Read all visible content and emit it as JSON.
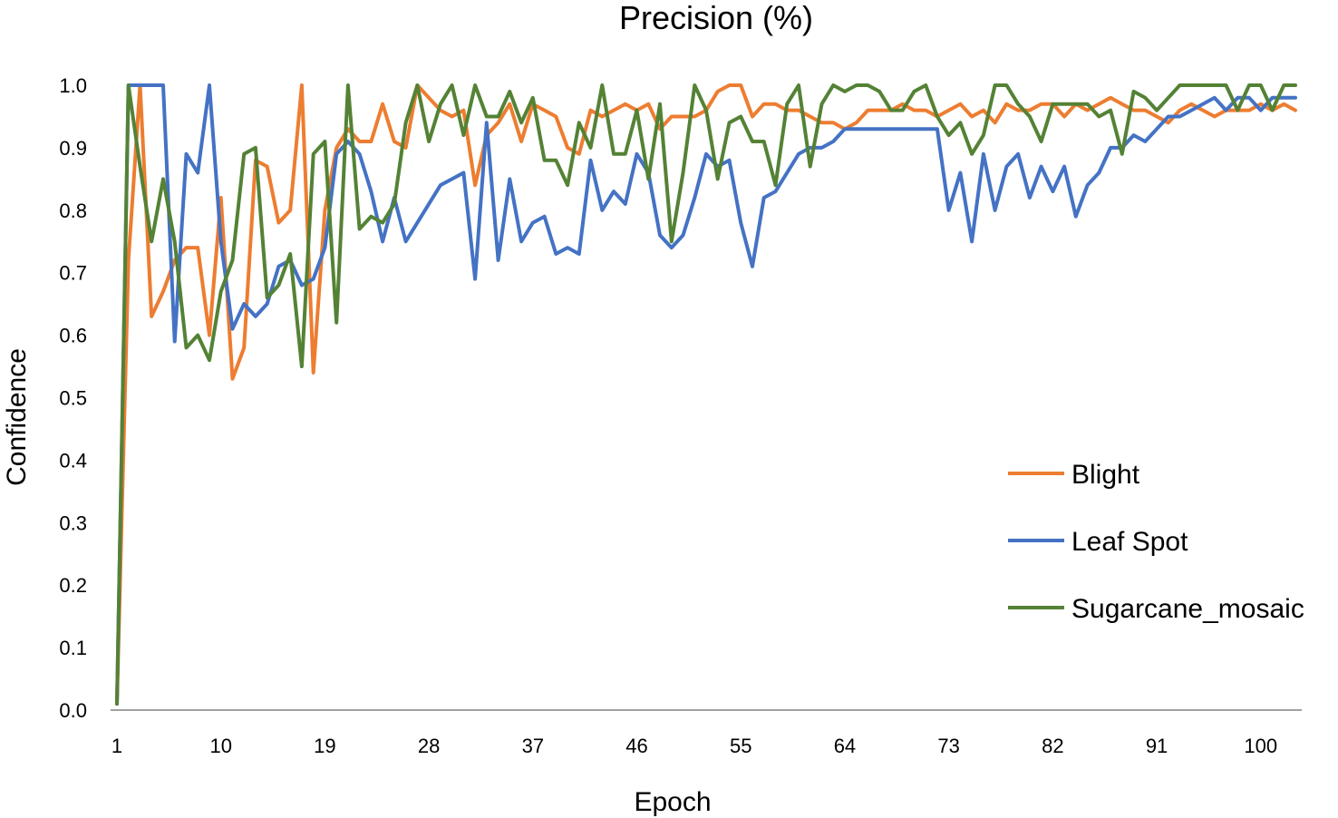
{
  "chart_data": {
    "type": "line",
    "title": "Precision (%)",
    "xlabel": "Epoch",
    "ylabel": "Confidence",
    "xlim": [
      1,
      103
    ],
    "ylim": [
      0,
      1
    ],
    "x_ticks": [
      1,
      10,
      19,
      28,
      37,
      46,
      55,
      64,
      73,
      82,
      91,
      100
    ],
    "y_ticks": [
      "0.0",
      "0.1",
      "0.2",
      "0.3",
      "0.4",
      "0.5",
      "0.6",
      "0.7",
      "0.8",
      "0.9",
      "1.0"
    ],
    "grid": false,
    "legend_position": "right",
    "series": [
      {
        "name": "Blight",
        "color": "#ED7D31",
        "values": [
          0.01,
          0.72,
          1.0,
          0.63,
          0.67,
          0.72,
          0.74,
          0.74,
          0.6,
          0.82,
          0.53,
          0.58,
          0.88,
          0.87,
          0.78,
          0.8,
          1.0,
          0.54,
          0.8,
          0.9,
          0.93,
          0.91,
          0.91,
          0.97,
          0.91,
          0.9,
          1.0,
          0.98,
          0.96,
          0.95,
          0.96,
          0.84,
          0.92,
          0.94,
          0.97,
          0.91,
          0.97,
          0.96,
          0.95,
          0.9,
          0.89,
          0.96,
          0.95,
          0.96,
          0.97,
          0.96,
          0.97,
          0.93,
          0.95,
          0.95,
          0.95,
          0.96,
          0.99,
          1.0,
          1.0,
          0.95,
          0.97,
          0.97,
          0.96,
          0.96,
          0.95,
          0.94,
          0.94,
          0.93,
          0.94,
          0.96,
          0.96,
          0.96,
          0.97,
          0.96,
          0.96,
          0.95,
          0.96,
          0.97,
          0.95,
          0.96,
          0.94,
          0.97,
          0.96,
          0.96,
          0.97,
          0.97,
          0.95,
          0.97,
          0.96,
          0.97,
          0.98,
          0.97,
          0.96,
          0.96,
          0.95,
          0.94,
          0.96,
          0.97,
          0.96,
          0.95,
          0.96,
          0.96,
          0.96,
          0.97,
          0.96,
          0.97,
          0.96
        ]
      },
      {
        "name": "Leaf Spot",
        "color": "#4472C4",
        "values": [
          0.01,
          1.0,
          1.0,
          1.0,
          1.0,
          0.59,
          0.89,
          0.86,
          1.0,
          0.75,
          0.61,
          0.65,
          0.63,
          0.65,
          0.71,
          0.72,
          0.68,
          0.69,
          0.74,
          0.89,
          0.91,
          0.89,
          0.83,
          0.75,
          0.82,
          0.75,
          0.78,
          0.81,
          0.84,
          0.85,
          0.86,
          0.69,
          0.94,
          0.72,
          0.85,
          0.75,
          0.78,
          0.79,
          0.73,
          0.74,
          0.73,
          0.88,
          0.8,
          0.83,
          0.81,
          0.89,
          0.86,
          0.76,
          0.74,
          0.76,
          0.82,
          0.89,
          0.87,
          0.88,
          0.78,
          0.71,
          0.82,
          0.83,
          0.86,
          0.89,
          0.9,
          0.9,
          0.91,
          0.93,
          0.93,
          0.93,
          0.93,
          0.93,
          0.93,
          0.93,
          0.93,
          0.93,
          0.8,
          0.86,
          0.75,
          0.89,
          0.8,
          0.87,
          0.89,
          0.82,
          0.87,
          0.83,
          0.87,
          0.79,
          0.84,
          0.86,
          0.9,
          0.9,
          0.92,
          0.91,
          0.93,
          0.95,
          0.95,
          0.96,
          0.97,
          0.98,
          0.96,
          0.98,
          0.98,
          0.96,
          0.98,
          0.98,
          0.98
        ]
      },
      {
        "name": "Sugarcane_mosaic",
        "color": "#548235",
        "values": [
          0.01,
          1.0,
          0.87,
          0.75,
          0.85,
          0.75,
          0.58,
          0.6,
          0.56,
          0.67,
          0.72,
          0.89,
          0.9,
          0.66,
          0.68,
          0.73,
          0.55,
          0.89,
          0.91,
          0.62,
          1.0,
          0.77,
          0.79,
          0.78,
          0.81,
          0.94,
          1.0,
          0.91,
          0.97,
          1.0,
          0.92,
          1.0,
          0.95,
          0.95,
          0.99,
          0.94,
          0.98,
          0.88,
          0.88,
          0.84,
          0.94,
          0.9,
          1.0,
          0.89,
          0.89,
          0.96,
          0.85,
          0.97,
          0.75,
          0.86,
          1.0,
          0.96,
          0.85,
          0.94,
          0.95,
          0.91,
          0.91,
          0.84,
          0.97,
          1.0,
          0.87,
          0.97,
          1.0,
          0.99,
          1.0,
          1.0,
          0.99,
          0.96,
          0.96,
          0.99,
          1.0,
          0.95,
          0.92,
          0.94,
          0.89,
          0.92,
          1.0,
          1.0,
          0.97,
          0.95,
          0.91,
          0.97,
          0.97,
          0.97,
          0.97,
          0.95,
          0.96,
          0.89,
          0.99,
          0.98,
          0.96,
          0.98,
          1.0,
          1.0,
          1.0,
          1.0,
          1.0,
          0.96,
          1.0,
          1.0,
          0.96,
          1.0,
          1.0
        ]
      }
    ]
  }
}
